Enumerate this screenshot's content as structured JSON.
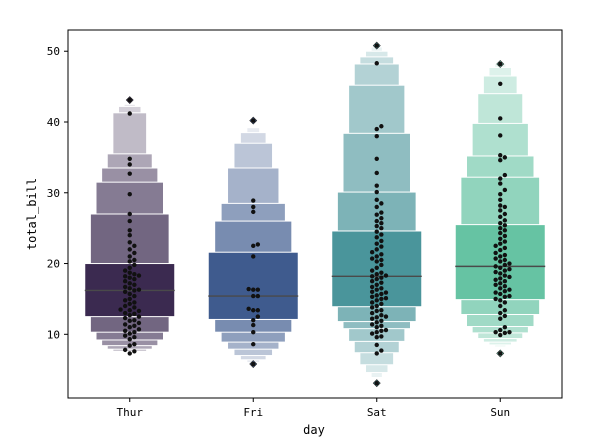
{
  "chart_data": {
    "type": "boxen",
    "xlabel": "day",
    "ylabel": "total_bill",
    "ylim": [
      1.0,
      53.0
    ],
    "yticks": [
      10,
      20,
      30,
      40,
      50
    ],
    "grid": false,
    "legend": "none",
    "categories": [
      "Thur",
      "Fri",
      "Sat",
      "Sun"
    ],
    "colors": [
      "#3b2a50",
      "#3f5b8e",
      "#4a959b",
      "#66c3a3"
    ],
    "boxen": [
      {
        "category": "Thur",
        "median": 16.2,
        "levels": [
          [
            12.5,
            20.0
          ],
          [
            10.3,
            27.0
          ],
          [
            9.2,
            31.5
          ],
          [
            8.4,
            33.5
          ],
          [
            7.9,
            35.5
          ],
          [
            7.6,
            41.3
          ],
          [
            7.5,
            42.2
          ],
          [
            7.4,
            42.5
          ]
        ],
        "outliers": [
          43.1
        ],
        "points": [
          7.3,
          7.6,
          7.8,
          8.4,
          8.6,
          9.3,
          9.6,
          9.8,
          10.1,
          10.3,
          10.5,
          10.7,
          11.0,
          11.2,
          11.4,
          11.6,
          11.9,
          12.0,
          12.3,
          12.5,
          12.7,
          12.9,
          13.0,
          13.3,
          13.4,
          13.5,
          13.8,
          14.0,
          14.3,
          14.5,
          14.8,
          15.0,
          15.4,
          15.7,
          16.0,
          16.2,
          16.3,
          16.5,
          16.7,
          17.0,
          17.2,
          17.5,
          17.8,
          18.0,
          18.2,
          18.3,
          18.5,
          18.7,
          19.0,
          19.4,
          19.8,
          20.3,
          20.5,
          21.0,
          21.5,
          22.0,
          22.5,
          23.0,
          24.0,
          24.7,
          26.0,
          27.0,
          29.8,
          32.7,
          34.0,
          34.8,
          41.2,
          43.1
        ]
      },
      {
        "category": "Fri",
        "median": 15.4,
        "levels": [
          [
            12.1,
            21.6
          ],
          [
            10.3,
            26.0
          ],
          [
            8.9,
            28.5
          ],
          [
            7.9,
            33.5
          ],
          [
            7.0,
            37.0
          ],
          [
            6.4,
            38.5
          ],
          [
            6.0,
            39.2
          ]
        ],
        "outliers": [
          5.8,
          40.2
        ],
        "points": [
          5.8,
          8.6,
          10.3,
          11.3,
          12.0,
          12.5,
          13.4,
          13.4,
          13.6,
          15.4,
          15.4,
          16.3,
          16.3,
          16.4,
          21.0,
          22.5,
          22.7,
          27.3,
          28.0,
          28.9,
          40.2
        ]
      },
      {
        "category": "Sat",
        "median": 18.2,
        "levels": [
          [
            13.9,
            24.6
          ],
          [
            11.8,
            30.1
          ],
          [
            10.8,
            38.4
          ],
          [
            9.0,
            45.2
          ],
          [
            7.4,
            48.2
          ],
          [
            5.7,
            49.2
          ],
          [
            4.6,
            50.0
          ],
          [
            3.9,
            50.6
          ]
        ],
        "outliers": [
          3.1,
          50.8
        ],
        "points": [
          7.3,
          7.7,
          8.5,
          9.6,
          9.7,
          10.1,
          10.3,
          10.5,
          10.6,
          11.0,
          11.2,
          11.4,
          11.7,
          11.9,
          12.2,
          12.4,
          12.5,
          12.7,
          13.0,
          13.3,
          13.4,
          13.8,
          14.0,
          14.3,
          14.5,
          14.8,
          15.0,
          15.1,
          15.3,
          15.5,
          15.7,
          15.9,
          16.0,
          16.3,
          16.5,
          16.7,
          17.0,
          17.3,
          17.5,
          17.8,
          18.0,
          18.2,
          18.3,
          18.5,
          18.7,
          19.0,
          19.4,
          19.8,
          20.3,
          20.5,
          20.7,
          21.0,
          21.3,
          21.6,
          22.0,
          22.4,
          22.8,
          23.2,
          23.7,
          24.1,
          24.5,
          25.0,
          25.3,
          25.7,
          26.0,
          26.4,
          26.9,
          27.2,
          28.0,
          28.5,
          29.0,
          30.1,
          31.0,
          32.8,
          34.8,
          38.0,
          39.0,
          39.4,
          48.3,
          50.8,
          3.1
        ]
      },
      {
        "category": "Sun",
        "median": 19.6,
        "levels": [
          [
            14.9,
            25.5
          ],
          [
            12.8,
            32.2
          ],
          [
            11.1,
            35.2
          ],
          [
            10.2,
            39.8
          ],
          [
            9.4,
            44.0
          ],
          [
            8.9,
            46.5
          ],
          [
            8.5,
            47.7
          ],
          [
            8.2,
            48.3
          ]
        ],
        "outliers": [
          7.3,
          48.2
        ],
        "points": [
          7.3,
          9.9,
          10.2,
          10.3,
          10.3,
          10.6,
          11.0,
          12.2,
          12.6,
          13.0,
          13.4,
          14.0,
          14.5,
          14.8,
          15.0,
          15.3,
          15.4,
          15.7,
          15.9,
          16.1,
          16.3,
          16.5,
          16.8,
          17.0,
          17.2,
          17.5,
          17.7,
          17.9,
          18.1,
          18.3,
          18.6,
          18.8,
          19.0,
          19.2,
          19.4,
          19.6,
          19.8,
          20.0,
          20.3,
          20.5,
          20.7,
          21.0,
          21.2,
          21.5,
          21.9,
          22.2,
          22.5,
          22.8,
          23.1,
          23.5,
          23.9,
          24.3,
          24.7,
          25.0,
          25.4,
          25.7,
          26.1,
          26.6,
          27.0,
          27.5,
          28.0,
          28.2,
          29.0,
          29.8,
          30.4,
          31.3,
          32.0,
          32.5,
          34.6,
          35.0,
          35.3,
          38.1,
          40.5,
          45.4,
          48.2
        ]
      }
    ]
  }
}
